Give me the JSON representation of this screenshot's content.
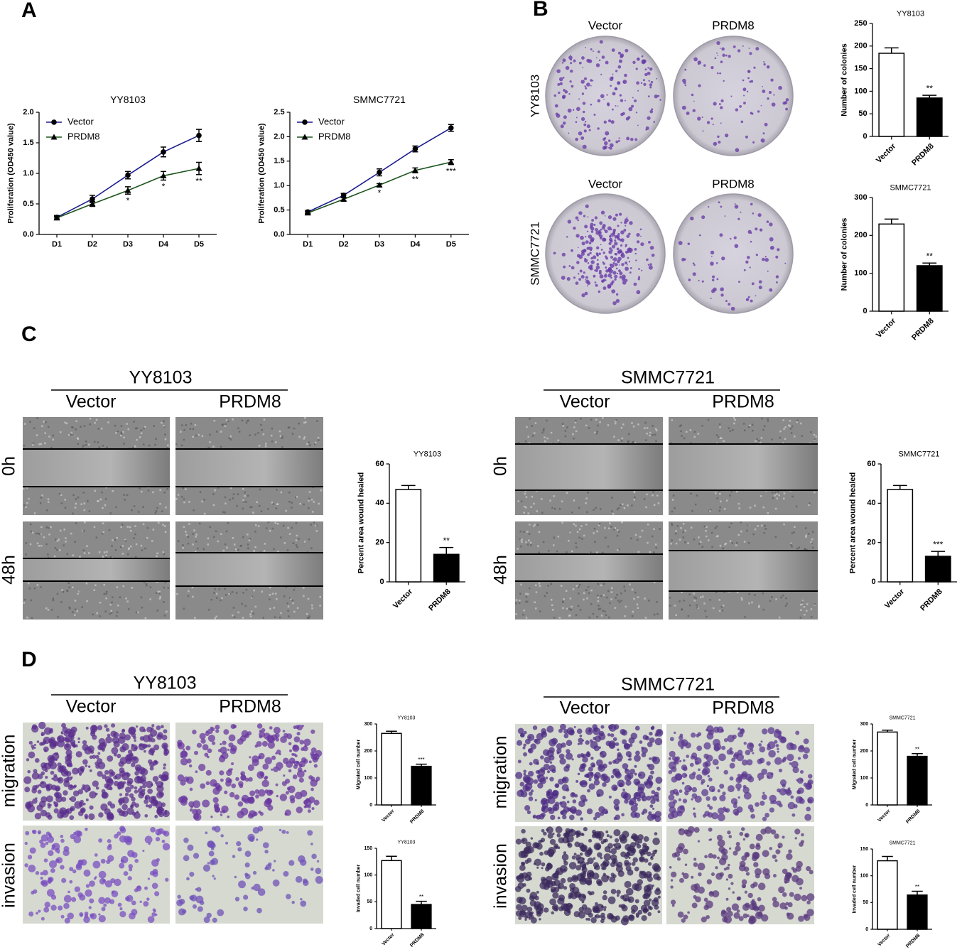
{
  "figure_labels": [
    "A",
    "B",
    "C",
    "D",
    "Vector",
    "PRDM8",
    "YY8103",
    "Vector",
    "PRDM8",
    "SMMC7721",
    "YY8103",
    "Vector",
    "PRDM8",
    "0h",
    "48h",
    "SMMC7721",
    "Vector",
    "PRDM8",
    "0h",
    "48h",
    "YY8103",
    "Vector",
    "PRDM8",
    "migration",
    "invasion",
    "SMMC7721",
    "Vector",
    "PRDM8",
    "migration",
    "invasion"
  ],
  "chart_data": [
    {
      "type": "line",
      "title": "YY8103",
      "ylabel": "Proliferation (OD450 value)",
      "categories": [
        "D1",
        "D2",
        "D3",
        "D4",
        "D5"
      ],
      "series": [
        {
          "name": "Vector",
          "color": "#1c1c8e",
          "marker": "circle",
          "values": [
            0.28,
            0.58,
            0.97,
            1.35,
            1.62
          ],
          "errors": [
            0.03,
            0.06,
            0.06,
            0.08,
            0.1
          ]
        },
        {
          "name": "PRDM8",
          "color": "#1e551e",
          "marker": "triangle",
          "values": [
            0.27,
            0.5,
            0.72,
            0.96,
            1.08
          ],
          "errors": [
            0.03,
            0.04,
            0.06,
            0.07,
            0.1
          ],
          "annotations": [
            null,
            null,
            "*",
            "*",
            "**"
          ]
        }
      ],
      "ylim": [
        0,
        2
      ],
      "yticks": [
        {
          "value": 0,
          "label": "0.0"
        },
        0.5,
        {
          "value": 1,
          "label": "1.0"
        },
        1.5,
        {
          "value": 2,
          "label": "2.0"
        }
      ]
    },
    {
      "type": "line",
      "title": "SMMC7721",
      "ylabel": "Proliferation (OD450 value)",
      "categories": [
        "D1",
        "D2",
        "D3",
        "D4",
        "D5"
      ],
      "series": [
        {
          "name": "Vector",
          "color": "#1c1c8e",
          "marker": "circle",
          "values": [
            0.46,
            0.8,
            1.27,
            1.75,
            2.18
          ],
          "errors": [
            0.03,
            0.04,
            0.07,
            0.06,
            0.07
          ]
        },
        {
          "name": "PRDM8",
          "color": "#1e551e",
          "marker": "triangle",
          "values": [
            0.44,
            0.72,
            1.01,
            1.31,
            1.48
          ],
          "errors": [
            0.03,
            0.03,
            0.03,
            0.05,
            0.05
          ],
          "annotations": [
            null,
            null,
            "*",
            "**",
            "***"
          ]
        }
      ],
      "ylim": [
        0,
        2.5
      ],
      "yticks": [
        {
          "value": 0,
          "label": "0.0"
        },
        0.5,
        {
          "value": 1,
          "label": "1.0"
        },
        1.5,
        {
          "value": 2,
          "label": "2.0"
        },
        2.5
      ]
    },
    {
      "type": "bar",
      "title": "YY8103",
      "ylabel": "Number of colonies",
      "categories": [
        "Vector",
        "PRDM8"
      ],
      "values": [
        184,
        85
      ],
      "errors": [
        12,
        6
      ],
      "colors": [
        "#ffffff",
        "#000000"
      ],
      "annotations": [
        null,
        "**"
      ],
      "ylim": [
        0,
        250
      ],
      "yticks": [
        0,
        50,
        100,
        150,
        200,
        250
      ]
    },
    {
      "type": "bar",
      "title": "SMMC7721",
      "ylabel": "Number of colonies",
      "categories": [
        "Vector",
        "PRDM8"
      ],
      "values": [
        230,
        120
      ],
      "errors": [
        13,
        7
      ],
      "colors": [
        "#ffffff",
        "#000000"
      ],
      "annotations": [
        null,
        "**"
      ],
      "ylim": [
        0,
        300
      ],
      "yticks": [
        0,
        100,
        200,
        300
      ]
    },
    {
      "type": "bar",
      "title": "YY8103",
      "ylabel": "Percent area wound healed",
      "categories": [
        "Vector",
        "PRDM8"
      ],
      "values": [
        47,
        14
      ],
      "errors": [
        2,
        3.5
      ],
      "colors": [
        "#ffffff",
        "#000000"
      ],
      "annotations": [
        null,
        "**"
      ],
      "ylim": [
        0,
        60
      ],
      "yticks": [
        0,
        20,
        40,
        60
      ]
    },
    {
      "type": "bar",
      "title": "SMMC7721",
      "ylabel": "Percent area wound healed",
      "categories": [
        "Vector",
        "PRDM8"
      ],
      "values": [
        47,
        13
      ],
      "errors": [
        2,
        2.5
      ],
      "colors": [
        "#ffffff",
        "#000000"
      ],
      "annotations": [
        null,
        "***"
      ],
      "ylim": [
        0,
        60
      ],
      "yticks": [
        0,
        20,
        40,
        60
      ]
    },
    {
      "type": "bar",
      "title": "YY8103",
      "ylabel": "Migrated cell number",
      "categories": [
        "Vector",
        "PRDM8"
      ],
      "values": [
        265,
        143
      ],
      "errors": [
        8,
        8
      ],
      "colors": [
        "#ffffff",
        "#000000"
      ],
      "annotations": [
        null,
        "***"
      ],
      "ylim": [
        0,
        300
      ],
      "yticks": [
        0,
        100,
        200,
        300
      ]
    },
    {
      "type": "bar",
      "title": "YY8103",
      "ylabel": "Invaded cell number",
      "categories": [
        "Vector",
        "PRDM8"
      ],
      "values": [
        127,
        45
      ],
      "errors": [
        8,
        6
      ],
      "colors": [
        "#ffffff",
        "#000000"
      ],
      "annotations": [
        null,
        "**"
      ],
      "ylim": [
        0,
        150
      ],
      "yticks": [
        0,
        50,
        100,
        150
      ]
    },
    {
      "type": "bar",
      "title": "SMMC7721",
      "ylabel": "Migrated cell number",
      "categories": [
        "Vector",
        "PRDM8"
      ],
      "values": [
        270,
        180
      ],
      "errors": [
        7,
        10
      ],
      "colors": [
        "#ffffff",
        "#000000"
      ],
      "annotations": [
        null,
        "**"
      ],
      "ylim": [
        0,
        300
      ],
      "yticks": [
        0,
        100,
        200,
        300
      ]
    },
    {
      "type": "bar",
      "title": "SMMC7721",
      "ylabel": "Invaded cell number",
      "categories": [
        "Vector",
        "PRDM8"
      ],
      "values": [
        128,
        64
      ],
      "errors": [
        8,
        7
      ],
      "colors": [
        "#ffffff",
        "#000000"
      ],
      "annotations": [
        null,
        "**"
      ],
      "ylim": [
        0,
        150
      ],
      "yticks": [
        0,
        50,
        100,
        150
      ]
    }
  ]
}
